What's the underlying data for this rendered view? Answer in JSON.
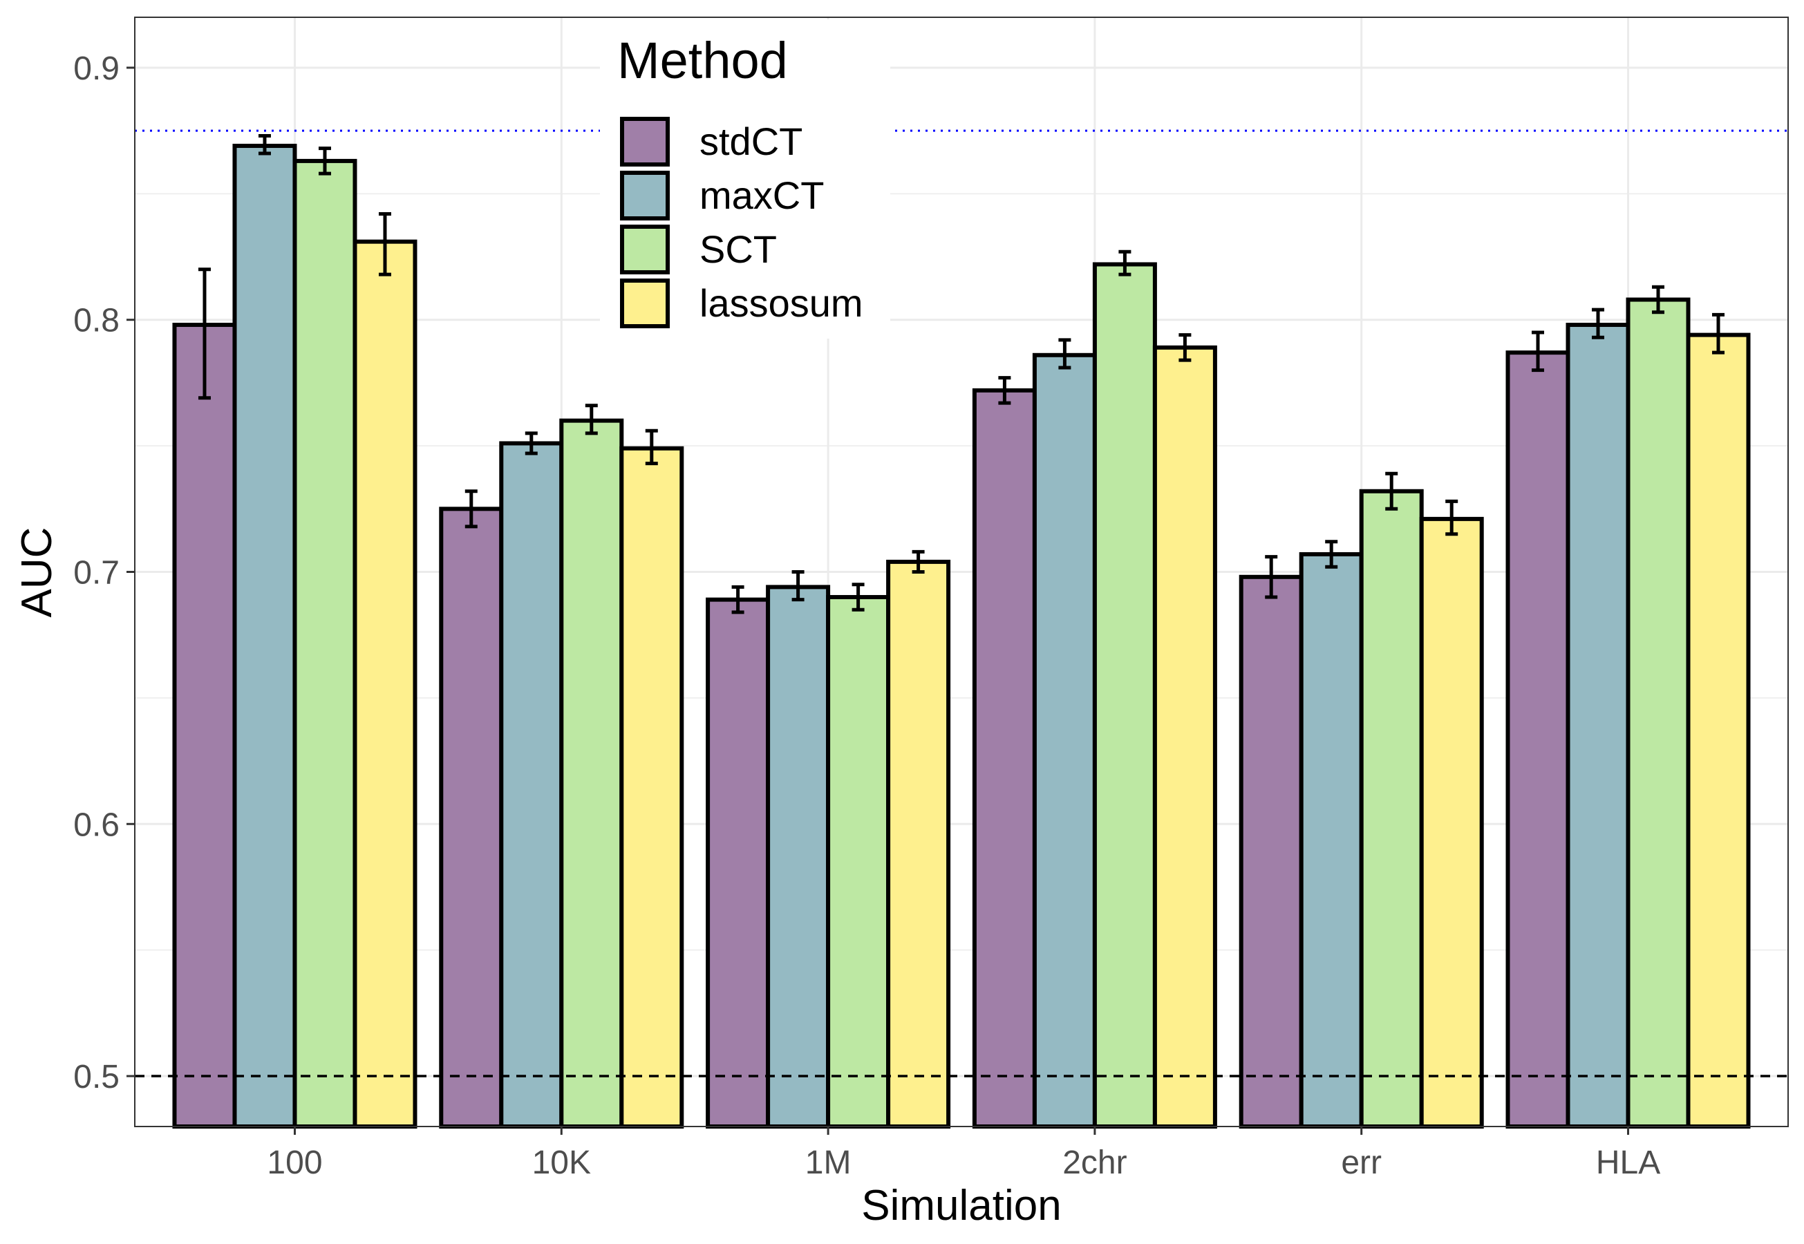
{
  "chart_data": {
    "type": "bar",
    "xlabel": "Simulation",
    "ylabel": "AUC",
    "categories": [
      "100",
      "10K",
      "1M",
      "2chr",
      "err",
      "HLA"
    ],
    "ylim": [
      0.48,
      0.92
    ],
    "yticks": [
      0.5,
      0.6,
      0.7,
      0.8,
      0.9
    ],
    "ytick_labels": [
      "0.5",
      "0.6",
      "0.7",
      "0.8",
      "0.9"
    ],
    "grid": true,
    "legend": {
      "title": "Method",
      "position": "top-center"
    },
    "series": [
      {
        "name": "stdCT",
        "color": "#A07FA8",
        "values": [
          0.798,
          0.725,
          0.689,
          0.772,
          0.698,
          0.787
        ],
        "err_low": [
          0.769,
          0.718,
          0.684,
          0.767,
          0.69,
          0.78
        ],
        "err_high": [
          0.82,
          0.732,
          0.694,
          0.777,
          0.706,
          0.795
        ]
      },
      {
        "name": "maxCT",
        "color": "#95BAC3",
        "values": [
          0.869,
          0.751,
          0.694,
          0.786,
          0.707,
          0.798
        ],
        "err_low": [
          0.866,
          0.747,
          0.689,
          0.781,
          0.702,
          0.793
        ],
        "err_high": [
          0.873,
          0.755,
          0.7,
          0.792,
          0.712,
          0.804
        ]
      },
      {
        "name": "SCT",
        "color": "#BDE8A3",
        "values": [
          0.863,
          0.76,
          0.69,
          0.822,
          0.732,
          0.808
        ],
        "err_low": [
          0.858,
          0.755,
          0.685,
          0.818,
          0.725,
          0.803
        ],
        "err_high": [
          0.868,
          0.766,
          0.695,
          0.827,
          0.739,
          0.813
        ]
      },
      {
        "name": "lassosum",
        "color": "#FEF08E",
        "values": [
          0.831,
          0.749,
          0.704,
          0.789,
          0.721,
          0.794
        ],
        "err_low": [
          0.818,
          0.743,
          0.7,
          0.784,
          0.715,
          0.787
        ],
        "err_high": [
          0.842,
          0.756,
          0.708,
          0.794,
          0.728,
          0.802
        ]
      }
    ],
    "reference_lines": [
      {
        "value": 0.5,
        "style": "dashed",
        "color": "#000000"
      },
      {
        "value": 0.875,
        "style": "dotted",
        "color": "#0000FF"
      }
    ]
  }
}
